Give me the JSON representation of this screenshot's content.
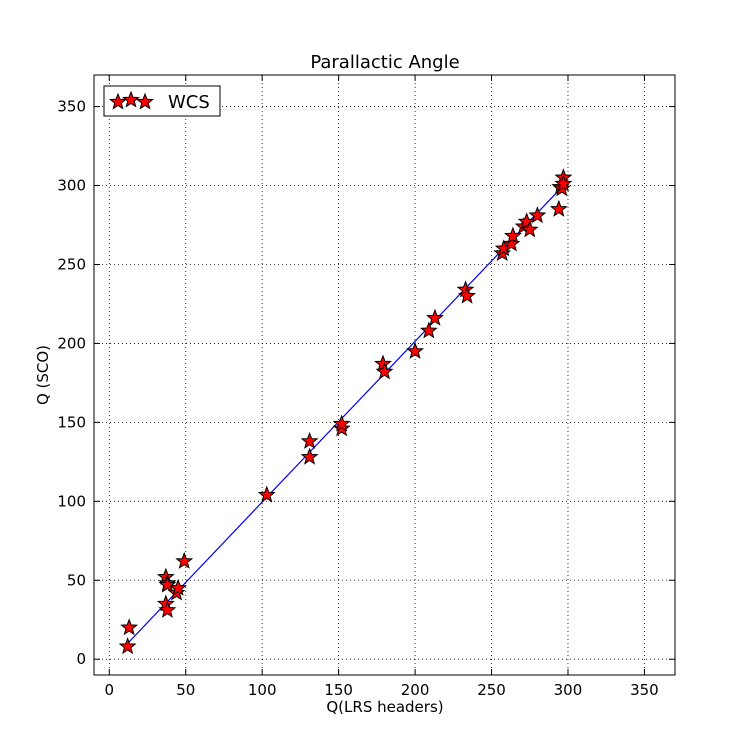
{
  "chart_data": {
    "type": "scatter",
    "title": "Parallactic Angle",
    "xlabel": "Q(LRS headers)",
    "ylabel": "Q (SCO)",
    "xlim": [
      -10,
      370
    ],
    "ylim": [
      -10,
      370
    ],
    "xticks": [
      0,
      50,
      100,
      150,
      200,
      250,
      300,
      350
    ],
    "yticks": [
      0,
      50,
      100,
      150,
      200,
      250,
      300,
      350
    ],
    "grid": true,
    "legend_position": "top-left",
    "series": [
      {
        "name": "WCS",
        "marker": "star",
        "color": "#ff0000",
        "edge_color": "#000000",
        "x": [
          12,
          13,
          37,
          38,
          37,
          38,
          38,
          44,
          45,
          49,
          103,
          131,
          131,
          152,
          152,
          179,
          180,
          200,
          209,
          213,
          233,
          234,
          257,
          258,
          263,
          264,
          271,
          273,
          275,
          280,
          294,
          295,
          296,
          297,
          297
        ],
        "y": [
          8,
          20,
          35,
          31,
          52,
          48,
          47,
          42,
          45,
          62,
          104,
          138,
          128,
          146,
          149,
          187,
          182,
          195,
          208,
          216,
          234,
          230,
          257,
          260,
          263,
          268,
          274,
          277,
          272,
          281,
          285,
          299,
          298,
          305,
          301
        ]
      }
    ],
    "fit_line": {
      "color": "#0000ff",
      "x": [
        12,
        297
      ],
      "y": [
        10,
        300
      ]
    }
  }
}
